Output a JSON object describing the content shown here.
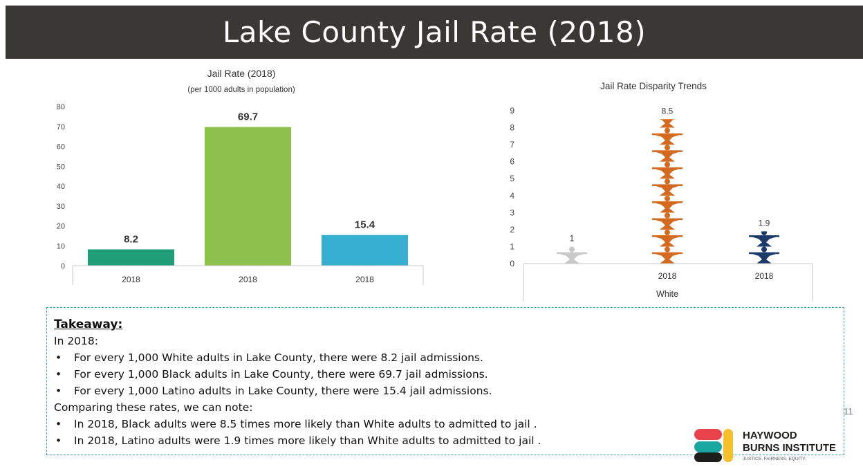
{
  "slide": {
    "title": "Lake County Jail Rate (2018)",
    "page_number": "11"
  },
  "chart_data": [
    {
      "type": "bar",
      "title": "Jail Rate (2018)",
      "subtitle": "(per 1000 adults in population)",
      "categories": [
        "2018",
        "2018",
        "2018"
      ],
      "values": [
        8.2,
        69.7,
        15.4
      ],
      "data_labels": [
        "8.2",
        "69.7",
        "15.4"
      ],
      "colors": [
        "#1f9e77",
        "#8cc14c",
        "#36afd0"
      ],
      "ylim": [
        0,
        80
      ],
      "yticks": [
        "0",
        "10",
        "20",
        "30",
        "40",
        "50",
        "60",
        "70",
        "80"
      ],
      "grid": false
    },
    {
      "type": "bar",
      "title": "Jail Rate Disparity Trends",
      "categories": [
        "",
        "2018",
        "2018"
      ],
      "group_label": "White",
      "values": [
        1,
        8.5,
        1.9
      ],
      "data_labels": [
        "1",
        "8.5",
        "1.9"
      ],
      "colors": [
        "#c9c9c9",
        "#d36a1f",
        "#1d3a6b"
      ],
      "mark": "pictograph-person-icon",
      "ylim": [
        0,
        9
      ],
      "yticks": [
        "0",
        "1",
        "2",
        "3",
        "4",
        "5",
        "6",
        "7",
        "8",
        "9"
      ],
      "grid": false
    }
  ],
  "takeaway": {
    "heading": "Takeaway:",
    "intro": "In 2018:",
    "bullets_rates": [
      "For every 1,000 White adults in Lake County, there were 8.2 jail admissions.",
      "For every 1,000 Black adults in Lake County, there were 69.7 jail admissions.",
      "For every 1,000 Latino adults in Lake County, there were 15.4 jail admissions."
    ],
    "compare": "Comparing these rates, we can note:",
    "bullets_compare": [
      "In 2018, Black adults were 8.5 times more likely than White adults to admitted to jail .",
      "In 2018, Latino adults were 1.9 times more likely than White adults to admitted to jail ."
    ]
  },
  "logo": {
    "line1": "HAYWOOD",
    "line2": "BURNS INSTITUTE",
    "tagline": "JUSTICE. FAIRNESS. EQUITY.",
    "colors": [
      "#e8424b",
      "#f6bf2c",
      "#1aa6a0",
      "#1d1d1b"
    ]
  }
}
